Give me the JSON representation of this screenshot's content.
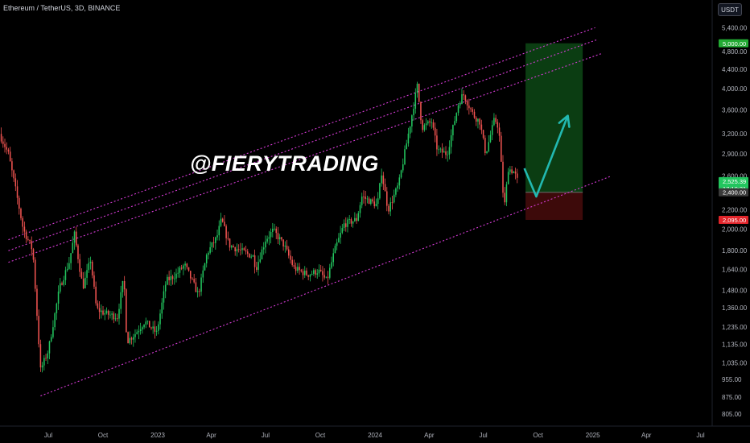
{
  "header": {
    "symbol_line": "Ethereum / TetherUS, 3D, BINANCE",
    "currency_label": "USDT"
  },
  "watermark": "@FIERYTRADING",
  "colors": {
    "background": "#000000",
    "up_candle": "#26a69a",
    "up_candle_bright": "#22c55e",
    "down_candle": "#ef5350",
    "channel_line": "#d63bd6",
    "target_zone": "#0b3d12",
    "stop_zone": "#3d0a0a",
    "arrow": "#22b8b0",
    "axis_text": "#b2b5be",
    "grid": "#000000"
  },
  "price_badges": {
    "target": {
      "label": "5,000.00",
      "color": "#22aa33"
    },
    "current": {
      "label": "2,525.39",
      "sub": "17:10:31",
      "color": "#22c55e"
    },
    "entry": {
      "label": "2,400.00",
      "color": "#3a3a3a"
    },
    "stop": {
      "label": "2,095.00",
      "color": "#e0242a"
    }
  },
  "chart_data": {
    "type": "candlestick",
    "title": "Ethereum / TetherUS, 3D, BINANCE",
    "y_scale": "log",
    "y_ticks": [
      805,
      875,
      955,
      1035,
      1135,
      1235,
      1360,
      1480,
      1640,
      1800,
      2000,
      2200,
      2400,
      2600,
      2900,
      3200,
      3600,
      4000,
      4400,
      4800,
      5400
    ],
    "y_tick_labels": [
      "805.00",
      "875.00",
      "955.00",
      "1,035.00",
      "1,135.00",
      "1,235.00",
      "1,360.00",
      "1,480.00",
      "1,640.00",
      "1,800.00",
      "2,000.00",
      "2,200.00",
      "2,400.00",
      "2,600.00",
      "2,900.00",
      "3,200.00",
      "3,600.00",
      "4,000.00",
      "4,400.00",
      "4,800.00",
      "5,400.00"
    ],
    "x_ticks": [
      "Jul",
      "Oct",
      "2023",
      "Apr",
      "Jul",
      "Oct",
      "2024",
      "Apr",
      "Jul",
      "Oct",
      "2025",
      "Apr",
      "Jul"
    ],
    "x_tick_dates": [
      "2022-07-01",
      "2022-10-01",
      "2023-01-01",
      "2023-04-01",
      "2023-07-01",
      "2023-10-01",
      "2024-01-01",
      "2024-04-01",
      "2024-07-01",
      "2024-10-01",
      "2025-01-01",
      "2025-04-01",
      "2025-07-01"
    ],
    "price_path": [
      [
        "2022-04-10",
        3200
      ],
      [
        "2022-04-25",
        2900
      ],
      [
        "2022-05-08",
        2400
      ],
      [
        "2022-05-20",
        2000
      ],
      [
        "2022-06-05",
        1800
      ],
      [
        "2022-06-14",
        1200
      ],
      [
        "2022-06-18",
        1000
      ],
      [
        "2022-07-01",
        1100
      ],
      [
        "2022-07-20",
        1500
      ],
      [
        "2022-08-05",
        1700
      ],
      [
        "2022-08-14",
        1950
      ],
      [
        "2022-08-28",
        1500
      ],
      [
        "2022-09-10",
        1720
      ],
      [
        "2022-09-20",
        1350
      ],
      [
        "2022-10-05",
        1320
      ],
      [
        "2022-10-25",
        1300
      ],
      [
        "2022-11-05",
        1580
      ],
      [
        "2022-11-10",
        1150
      ],
      [
        "2022-11-25",
        1200
      ],
      [
        "2022-12-10",
        1270
      ],
      [
        "2022-12-30",
        1200
      ],
      [
        "2023-01-15",
        1550
      ],
      [
        "2023-02-01",
        1600
      ],
      [
        "2023-02-15",
        1680
      ],
      [
        "2023-03-10",
        1450
      ],
      [
        "2023-03-25",
        1780
      ],
      [
        "2023-04-10",
        1920
      ],
      [
        "2023-04-18",
        2100
      ],
      [
        "2023-05-01",
        1850
      ],
      [
        "2023-05-20",
        1800
      ],
      [
        "2023-06-10",
        1750
      ],
      [
        "2023-06-15",
        1650
      ],
      [
        "2023-07-01",
        1900
      ],
      [
        "2023-07-14",
        1990
      ],
      [
        "2023-08-01",
        1850
      ],
      [
        "2023-08-18",
        1650
      ],
      [
        "2023-09-10",
        1600
      ],
      [
        "2023-09-28",
        1630
      ],
      [
        "2023-10-12",
        1550
      ],
      [
        "2023-10-25",
        1800
      ],
      [
        "2023-11-10",
        2050
      ],
      [
        "2023-12-01",
        2100
      ],
      [
        "2023-12-10",
        2350
      ],
      [
        "2024-01-05",
        2250
      ],
      [
        "2024-01-12",
        2650
      ],
      [
        "2024-01-23",
        2200
      ],
      [
        "2024-02-10",
        2500
      ],
      [
        "2024-02-28",
        3300
      ],
      [
        "2024-03-12",
        4050
      ],
      [
        "2024-03-20",
        3300
      ],
      [
        "2024-04-05",
        3400
      ],
      [
        "2024-04-15",
        2950
      ],
      [
        "2024-05-01",
        2900
      ],
      [
        "2024-05-20",
        3700
      ],
      [
        "2024-05-28",
        3900
      ],
      [
        "2024-06-15",
        3500
      ],
      [
        "2024-06-25",
        3400
      ],
      [
        "2024-07-05",
        2900
      ],
      [
        "2024-07-20",
        3450
      ],
      [
        "2024-07-27",
        3300
      ],
      [
        "2024-08-05",
        2200
      ],
      [
        "2024-08-12",
        2700
      ],
      [
        "2024-08-22",
        2650
      ],
      [
        "2024-08-28",
        2525
      ]
    ],
    "channel_lines": [
      {
        "from": [
          "2022-04-25",
          1900
        ],
        "to": [
          "2025-01-05",
          5400
        ]
      },
      {
        "from": [
          "2022-04-25",
          1800
        ],
        "to": [
          "2025-01-10",
          5100
        ]
      },
      {
        "from": [
          "2022-04-25",
          1700
        ],
        "to": [
          "2025-01-15",
          4750
        ]
      },
      {
        "from": [
          "2022-06-18",
          880
        ],
        "to": [
          "2025-02-01",
          2600
        ]
      }
    ],
    "target_zone": {
      "from": "2024-09-10",
      "to": "2024-12-15",
      "low": 2400,
      "high": 5000
    },
    "stop_zone": {
      "from": "2024-09-10",
      "to": "2024-12-15",
      "low": 2095,
      "high": 2400
    },
    "projection_arrow": [
      [
        "2024-09-08",
        2700
      ],
      [
        "2024-09-28",
        2350
      ],
      [
        "2024-11-20",
        3500
      ]
    ],
    "levels": {
      "target": 5000,
      "current": 2525.39,
      "entry": 2400,
      "stop": 2095
    }
  }
}
